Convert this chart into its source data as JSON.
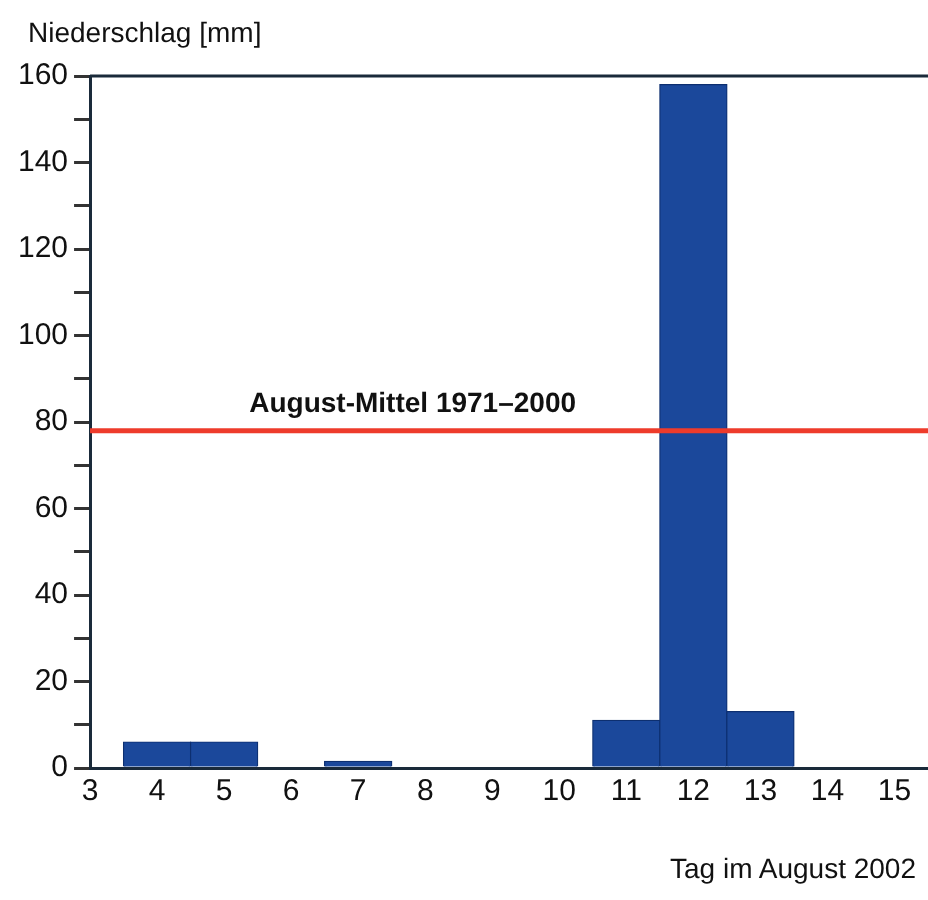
{
  "chart_data": {
    "type": "bar",
    "ylabel": "Niederschlag [mm]",
    "xlabel": "Tag im August 2002",
    "x": [
      4,
      5,
      7,
      11,
      12,
      13
    ],
    "values": [
      6,
      6,
      1.5,
      11,
      158,
      13
    ],
    "color": "#1b489b",
    "xlim": [
      3,
      15.5
    ],
    "xticks": [
      3,
      4,
      5,
      6,
      7,
      8,
      9,
      10,
      11,
      12,
      13,
      14,
      15
    ],
    "ylim": [
      0,
      160
    ],
    "yticks": [
      0,
      {
        "value": 10,
        "label": null
      },
      20,
      {
        "value": 30,
        "label": null
      },
      40,
      {
        "value": 50,
        "label": null
      },
      60,
      {
        "value": 70,
        "label": null
      },
      80,
      {
        "value": 90,
        "label": null
      },
      100,
      {
        "value": 110,
        "label": null
      },
      120,
      {
        "value": 130,
        "label": null
      },
      140,
      {
        "value": 150,
        "label": null
      },
      160
    ],
    "ref_lines": [
      {
        "axis": "y",
        "value": 78,
        "label": "August-Mittel 1971–2000",
        "color": "#ee3b2b"
      }
    ],
    "grid": false,
    "legend": false
  }
}
